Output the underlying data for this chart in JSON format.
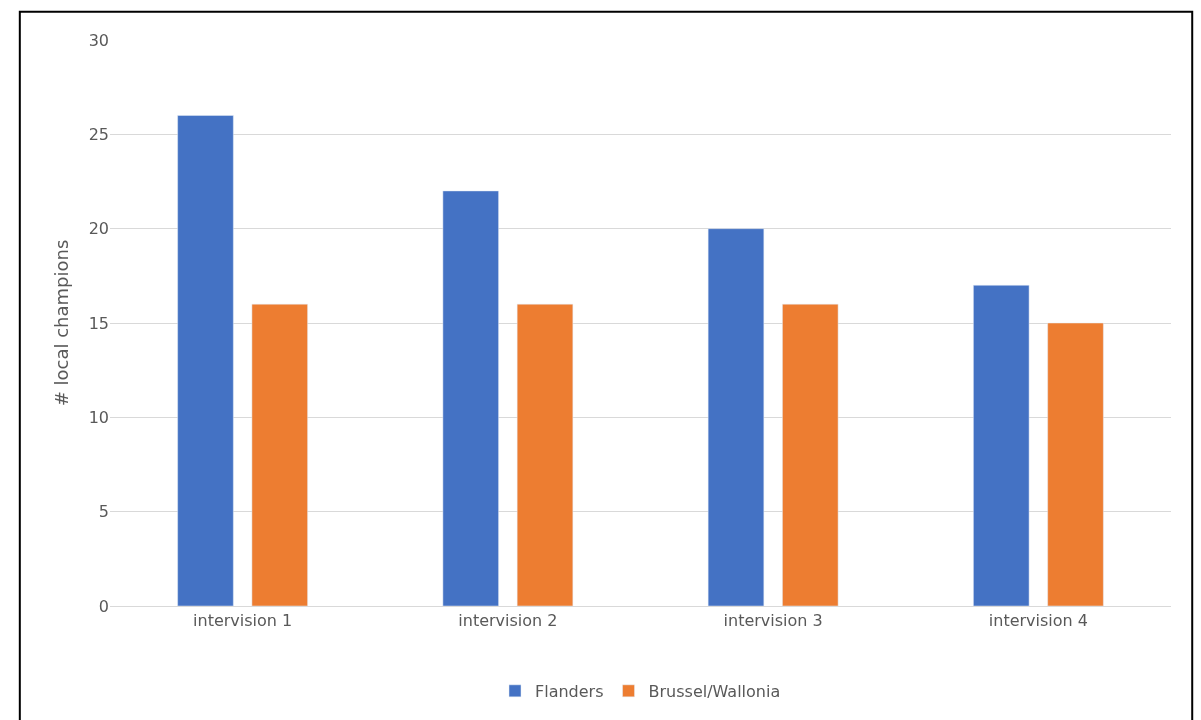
{
  "chart_data": {
    "type": "bar",
    "ylabel": "# local champions",
    "categories": [
      "intervision 1",
      "intervision 2",
      "intervision 3",
      "intervision 4"
    ],
    "series": [
      {
        "name": "Flanders",
        "color": "#4472c4",
        "values": [
          26,
          22,
          20,
          17
        ]
      },
      {
        "name": "Brussel/Wallonia",
        "color": "#ed7d31",
        "values": [
          16,
          16,
          16,
          15
        ]
      }
    ],
    "ylim": [
      0,
      30
    ],
    "yticks": [
      0,
      5,
      10,
      15,
      20,
      25,
      30
    ],
    "grid": "y",
    "legend": "bottom"
  }
}
